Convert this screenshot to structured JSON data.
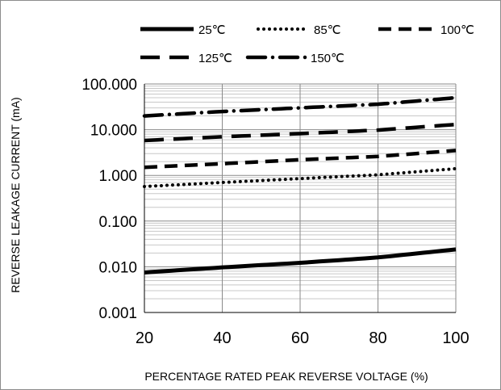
{
  "chart_data": {
    "type": "line",
    "xlabel": "PERCENTAGE RATED PEAK REVERSE VOLTAGE (%)",
    "ylabel": "REVERSE LEAKAGE CURRENT (mA)",
    "xlim": [
      20,
      100
    ],
    "ylim": [
      0.001,
      100
    ],
    "yscale": "log",
    "grid": true,
    "legend_position": "top",
    "x_ticks": [
      "20",
      "40",
      "60",
      "80",
      "100"
    ],
    "y_ticks": [
      "100.000",
      "10.000",
      "1.000",
      "0.100",
      "0.010",
      "0.001"
    ],
    "x": [
      20,
      40,
      60,
      80,
      100
    ],
    "series": [
      {
        "name": "25℃",
        "style": "solid",
        "values": [
          0.0075,
          0.0097,
          0.0122,
          0.016,
          0.024
        ]
      },
      {
        "name": "85℃",
        "style": "dotted",
        "values": [
          0.57,
          0.7,
          0.85,
          1.03,
          1.4
        ]
      },
      {
        "name": "100℃",
        "style": "dashed",
        "values": [
          1.5,
          1.8,
          2.2,
          2.6,
          3.5
        ]
      },
      {
        "name": "125℃",
        "style": "long-dash",
        "values": [
          5.8,
          7.0,
          8.2,
          9.8,
          13.0
        ]
      },
      {
        "name": "150℃",
        "style": "dash-dot",
        "values": [
          20,
          25,
          30,
          36,
          50
        ]
      }
    ]
  }
}
